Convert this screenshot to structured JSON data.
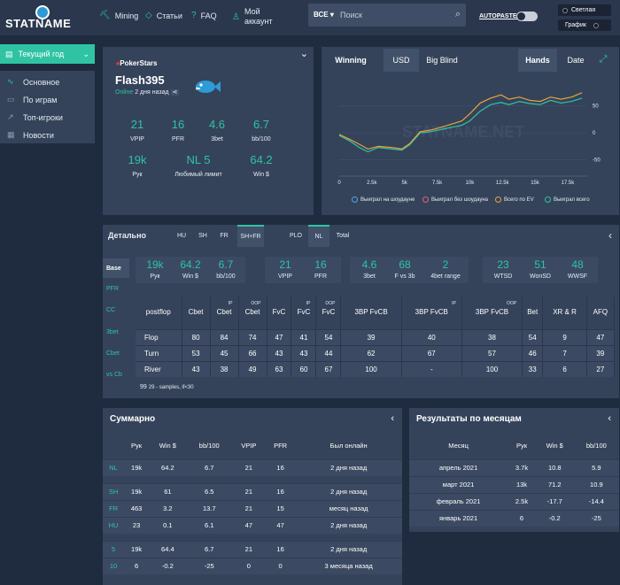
{
  "header": {
    "logo": "STATNAME",
    "nav": [
      {
        "label": "Mining",
        "icon": "pickaxe-icon"
      },
      {
        "label": "Статьи",
        "icon": "gem-icon"
      },
      {
        "label": "FAQ",
        "icon": "help-icon"
      },
      {
        "label": "Мой аккаунт",
        "icon": "user-icon"
      }
    ],
    "search": {
      "select": "ВСЕ",
      "placeholder": "Поиск"
    },
    "autopaste": "AUTOPASTE",
    "theme_light": "Светлая",
    "theme_graph": "График"
  },
  "sidebar": {
    "period": "Текущий год",
    "items": [
      "Основное",
      "По играм",
      "Топ-игроки",
      "Новости"
    ]
  },
  "profile": {
    "room": "PokerStars",
    "nickname": "Flash395",
    "online_label": "Online",
    "online_time": "2 дня назад",
    "stats": [
      {
        "value": "21",
        "label": "VPIP"
      },
      {
        "value": "16",
        "label": "PFR"
      },
      {
        "value": "4.6",
        "label": "3bet"
      },
      {
        "value": "6.7",
        "label": "bb/100"
      },
      {
        "value": "19k",
        "label": "Рук"
      },
      {
        "value": "NL 5",
        "label": "Любимый лимит"
      },
      {
        "value": "64.2",
        "label": "Win $"
      }
    ]
  },
  "chart": {
    "tabs": [
      "Winning",
      "USD",
      "Big Blind",
      "Hands",
      "Date"
    ],
    "watermark": "STATNAME.NET",
    "legend": [
      "Выиграл на шоудауне",
      "Выиграл без шоудауна",
      "Всего по EV",
      "Выиграл всего"
    ],
    "colors": {
      "showdown": "#4aa8e8",
      "non_showdown": "#e0607a",
      "ev": "#e8a33a",
      "total": "#2fc3a4"
    }
  },
  "chart_data": {
    "type": "line",
    "x_ticks": [
      "0",
      "2.5k",
      "5k",
      "7.5k",
      "10k",
      "12.5k",
      "15k",
      "17.5k"
    ],
    "y_ticks": [
      "50",
      "0",
      "-50"
    ],
    "ylim": [
      -80,
      90
    ],
    "xlim": [
      0,
      19000
    ],
    "series": [
      {
        "name": "Выиграл всего",
        "x": [
          0,
          800,
          1600,
          2200,
          3000,
          4000,
          4800,
          5400,
          6200,
          7000,
          7800,
          8600,
          9400,
          10000,
          10800,
          11600,
          12400,
          13000,
          13800,
          14600,
          15400,
          16200,
          17000,
          17800,
          18600
        ],
        "y": [
          -5,
          -15,
          -28,
          -35,
          -27,
          -30,
          -32,
          -22,
          0,
          2,
          6,
          10,
          14,
          22,
          40,
          52,
          56,
          52,
          58,
          54,
          52,
          60,
          55,
          58,
          64
        ]
      },
      {
        "name": "Всего по EV",
        "x": [
          0,
          800,
          1600,
          2200,
          3000,
          4000,
          4800,
          5400,
          6200,
          7000,
          7800,
          8600,
          9400,
          10000,
          10800,
          11600,
          12400,
          13000,
          13800,
          14600,
          15400,
          16200,
          17000,
          17800,
          18600
        ],
        "y": [
          -3,
          -12,
          -22,
          -30,
          -25,
          -27,
          -30,
          -20,
          2,
          5,
          10,
          16,
          22,
          35,
          55,
          64,
          70,
          62,
          66,
          60,
          58,
          66,
          62,
          66,
          74
        ]
      }
    ]
  },
  "detail": {
    "title": "Детально",
    "tabs": [
      "HU",
      "SH",
      "FR",
      "SH+FR",
      "PLO",
      "NL",
      "Total"
    ],
    "left_tabs": [
      "Base",
      "PFR",
      "CC",
      "3bet",
      "Cbet",
      "vs Cb"
    ],
    "boxes": [
      {
        "items": [
          {
            "v": "19k",
            "l": "Рук"
          },
          {
            "v": "64.2",
            "l": "Win $"
          },
          {
            "v": "6.7",
            "l": "bb/100"
          }
        ]
      },
      {
        "items": [
          {
            "v": "21",
            "l": "VPIP"
          },
          {
            "v": "16",
            "l": "PFR"
          }
        ]
      },
      {
        "items": [
          {
            "v": "4.6",
            "l": "3bet"
          },
          {
            "v": "68",
            "l": "F vs 3b"
          },
          {
            "v": "2",
            "l": "4bet range"
          }
        ]
      },
      {
        "items": [
          {
            "v": "23",
            "l": "WTSD"
          },
          {
            "v": "51",
            "l": "WonSD"
          },
          {
            "v": "48",
            "l": "WWSF"
          }
        ]
      }
    ],
    "postflop": {
      "headers": [
        "postflop",
        "Cbet",
        "Cbet",
        "Cbet",
        "FvC",
        "FvC",
        "FvC",
        "3BP FvCB",
        "3BP FvCB",
        "3BP FvCB",
        "Bet",
        "XR & R",
        "AFQ"
      ],
      "sup": [
        "",
        "",
        "IP",
        "OOP",
        "",
        "IP",
        "OOP",
        "",
        "IP",
        "OOP",
        "",
        "",
        ""
      ],
      "rows": [
        {
          "label": "Flop",
          "cells": [
            "80",
            "84",
            "74",
            "47",
            "41",
            "54",
            "39",
            "40",
            "38",
            "54",
            "9",
            "47"
          ]
        },
        {
          "label": "Turn",
          "cells": [
            "53",
            "45",
            "66",
            "43",
            "43",
            "44",
            "62",
            "67",
            "57",
            "46",
            "7",
            "39"
          ]
        },
        {
          "label": "River",
          "cells": [
            "43",
            "38",
            "49",
            "63",
            "60",
            "67",
            "100",
            "-",
            "100",
            "33",
            "6",
            "27"
          ]
        }
      ]
    },
    "note_value": "99",
    "note_text": "29 - samples, if<30"
  },
  "summary": {
    "title": "Суммарно",
    "headers": [
      "",
      "Рук",
      "Win $",
      "bb/100",
      "VPIP",
      "PFR",
      "Был онлайн"
    ],
    "groups": [
      [
        [
          "NL",
          "19k",
          "64.2",
          "6.7",
          "21",
          "16",
          "2 дня назад"
        ]
      ],
      [
        [
          "SH",
          "19k",
          "61",
          "6.5",
          "21",
          "16",
          "2 дня назад"
        ],
        [
          "FR",
          "463",
          "3.2",
          "13.7",
          "21",
          "15",
          "месяц назад"
        ],
        [
          "HU",
          "23",
          "0.1",
          "6.1",
          "47",
          "47",
          "2 дня назад"
        ]
      ],
      [
        [
          "5",
          "19k",
          "64.4",
          "6.7",
          "21",
          "16",
          "2 дня назад"
        ],
        [
          "10",
          "6",
          "-0.2",
          "-25",
          "0",
          "0",
          "3 месяца назад"
        ]
      ]
    ]
  },
  "months": {
    "title": "Результаты по месяцам",
    "headers": [
      "Месяц",
      "Рук",
      "Win $",
      "bb/100"
    ],
    "rows": [
      [
        "апрель 2021",
        "3.7k",
        "10.8",
        "5.9"
      ],
      [
        "март 2021",
        "13k",
        "71.2",
        "10.9"
      ],
      [
        "февраль 2021",
        "2.5k",
        "-17.7",
        "-14.4"
      ],
      [
        "январь 2021",
        "6",
        "-0.2",
        "-25"
      ]
    ]
  }
}
